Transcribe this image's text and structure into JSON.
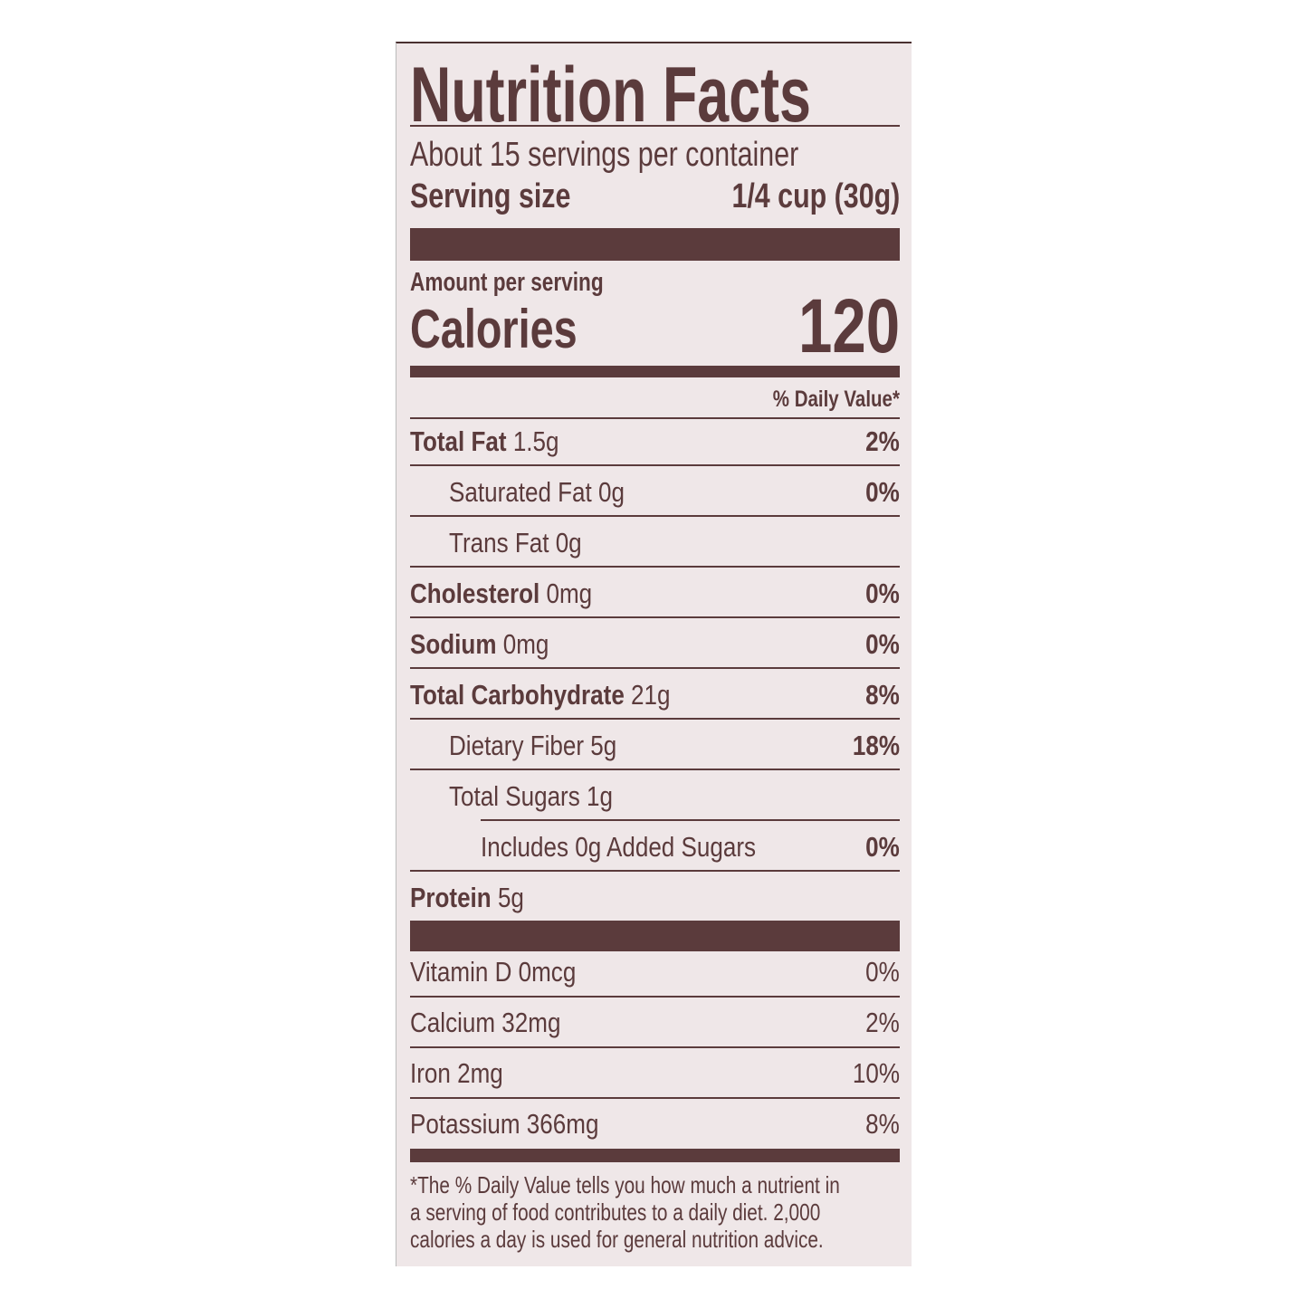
{
  "title": "Nutrition Facts",
  "servings_per_container": "About 15 servings per container",
  "serving_size_label": "Serving size",
  "serving_size_value": "1/4 cup (30g)",
  "amount_per_serving": "Amount per serving",
  "calories_label": "Calories",
  "calories_value": "120",
  "dv_header": "% Daily Value*",
  "nutrients": [
    {
      "name": "Total Fat",
      "amount": "1.5g",
      "dv": "2%"
    },
    {
      "name": "Saturated Fat 0g",
      "amount": "",
      "dv": "0%"
    },
    {
      "name": "Trans Fat 0g",
      "amount": "",
      "dv": ""
    },
    {
      "name": "Cholesterol",
      "amount": "0mg",
      "dv": "0%"
    },
    {
      "name": "Sodium",
      "amount": "0mg",
      "dv": "0%"
    },
    {
      "name": "Total Carbohydrate",
      "amount": "21g",
      "dv": "8%"
    },
    {
      "name": "Dietary Fiber 5g",
      "amount": "",
      "dv": "18%"
    },
    {
      "name": "Total Sugars 1g",
      "amount": "",
      "dv": ""
    },
    {
      "name": "Includes 0g Added Sugars",
      "amount": "",
      "dv": "0%"
    },
    {
      "name": "Protein",
      "amount": "5g",
      "dv": ""
    }
  ],
  "vitamins": [
    {
      "name": "Vitamin D 0mcg",
      "dv": "0%"
    },
    {
      "name": "Calcium 32mg",
      "dv": "2%"
    },
    {
      "name": "Iron 2mg",
      "dv": "10%"
    },
    {
      "name": "Potassium 366mg",
      "dv": "8%"
    }
  ],
  "footnote": [
    "*The % Daily Value tells you how much a nutrient in",
    "a serving of food contributes to a daily diet. 2,000",
    "calories a day is used for general nutrition advice."
  ],
  "colors": {
    "ink": "#5b3b3c",
    "label_background": "#efe7e8"
  }
}
